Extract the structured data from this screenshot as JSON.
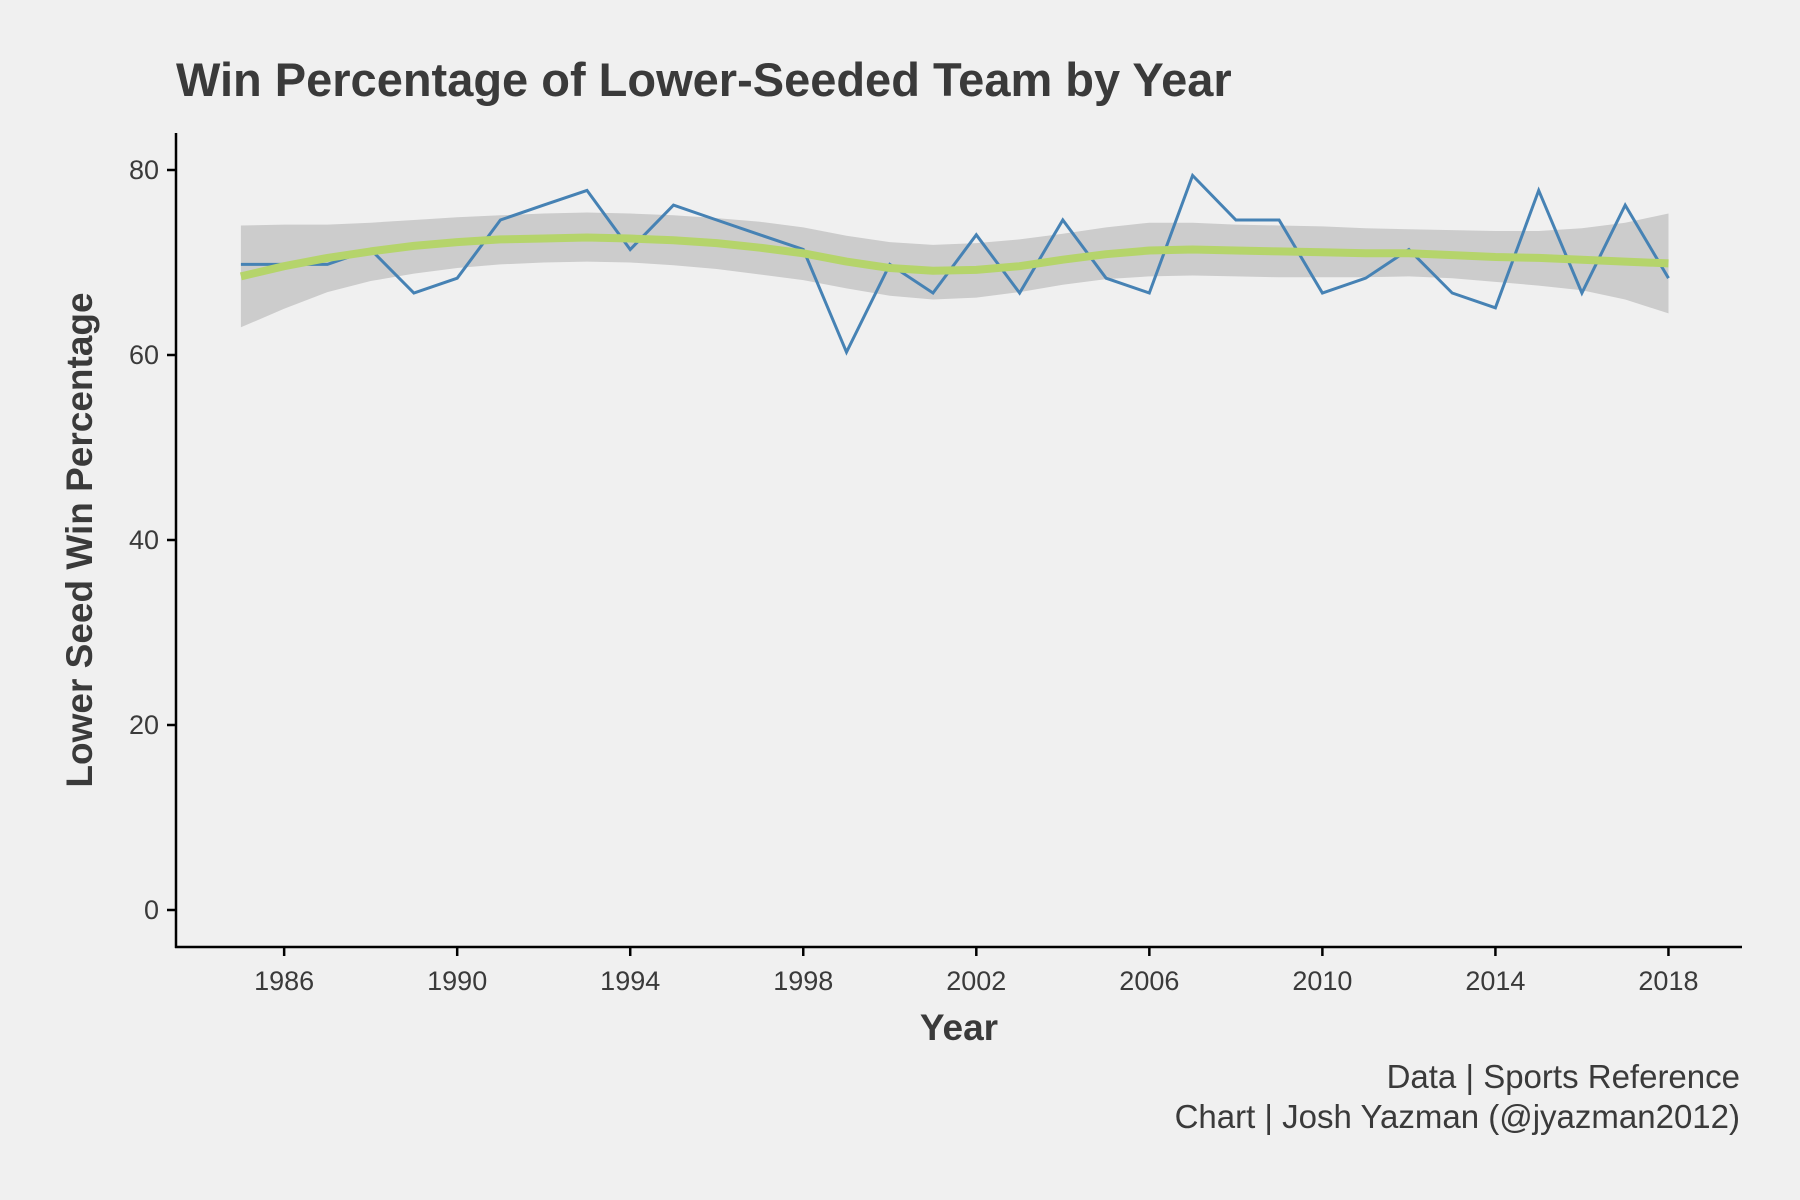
{
  "chart_data": {
    "type": "line",
    "title": "Win Percentage of Lower-Seeded Team by Year",
    "xlabel": "Year",
    "ylabel": "Lower Seed Win Percentage",
    "xlim": [
      1983.5,
      2019.7
    ],
    "ylim": [
      -4,
      84
    ],
    "xticks": [
      1986,
      1990,
      1994,
      1998,
      2002,
      2006,
      2010,
      2014,
      2018
    ],
    "yticks": [
      0,
      20,
      40,
      60,
      80
    ],
    "grid": false,
    "legend": "none",
    "series": [
      {
        "kind": "line",
        "color": "#4682b4",
        "x": [
          1985,
          1986,
          1987,
          1988,
          1989,
          1990,
          1991,
          1992,
          1993,
          1994,
          1995,
          1996,
          1997,
          1998,
          1999,
          2000,
          2001,
          2002,
          2003,
          2004,
          2005,
          2006,
          2007,
          2008,
          2009,
          2010,
          2011,
          2012,
          2013,
          2014,
          2015,
          2016,
          2017,
          2018
        ],
        "y": [
          69.8,
          69.8,
          69.8,
          71.4,
          66.7,
          68.3,
          74.6,
          76.2,
          77.8,
          71.4,
          76.2,
          74.6,
          73.0,
          71.4,
          60.3,
          69.8,
          66.7,
          73.0,
          66.7,
          74.6,
          68.3,
          66.7,
          79.4,
          74.6,
          74.6,
          66.7,
          68.3,
          71.4,
          66.7,
          65.1,
          77.8,
          66.7,
          76.2,
          68.3
        ]
      },
      {
        "kind": "smooth",
        "color": "#b5d46b",
        "band_color": "#cccccc",
        "x": [
          1985,
          1986,
          1987,
          1988,
          1989,
          1990,
          1991,
          1992,
          1993,
          1994,
          1995,
          1996,
          1997,
          1998,
          1999,
          2000,
          2001,
          2002,
          2003,
          2004,
          2005,
          2006,
          2007,
          2008,
          2009,
          2010,
          2011,
          2012,
          2013,
          2014,
          2015,
          2016,
          2017,
          2018
        ],
        "y": [
          68.5,
          69.6,
          70.5,
          71.2,
          71.8,
          72.2,
          72.5,
          72.6,
          72.7,
          72.6,
          72.4,
          72.1,
          71.6,
          71.0,
          70.1,
          69.4,
          69.1,
          69.2,
          69.6,
          70.3,
          70.9,
          71.3,
          71.4,
          71.3,
          71.2,
          71.1,
          71.0,
          71.0,
          70.8,
          70.6,
          70.5,
          70.3,
          70.1,
          69.9
        ],
        "lower": [
          63.0,
          65.0,
          66.8,
          68.0,
          68.8,
          69.4,
          69.8,
          70.0,
          70.1,
          70.0,
          69.7,
          69.3,
          68.7,
          68.1,
          67.2,
          66.4,
          66.0,
          66.2,
          66.8,
          67.6,
          68.2,
          68.5,
          68.6,
          68.5,
          68.4,
          68.4,
          68.4,
          68.5,
          68.3,
          67.9,
          67.5,
          67.0,
          66.0,
          64.5
        ],
        "upper": [
          74.0,
          74.1,
          74.1,
          74.3,
          74.6,
          74.9,
          75.1,
          75.3,
          75.4,
          75.3,
          75.1,
          74.8,
          74.4,
          73.8,
          72.9,
          72.2,
          71.9,
          72.1,
          72.5,
          73.1,
          73.8,
          74.3,
          74.3,
          74.1,
          74.0,
          73.9,
          73.7,
          73.6,
          73.5,
          73.4,
          73.4,
          73.7,
          74.3,
          75.3
        ]
      }
    ]
  },
  "caption": {
    "line1": "Data | Sports Reference",
    "line2": "Chart | Josh Yazman (@jyazman2012)"
  }
}
